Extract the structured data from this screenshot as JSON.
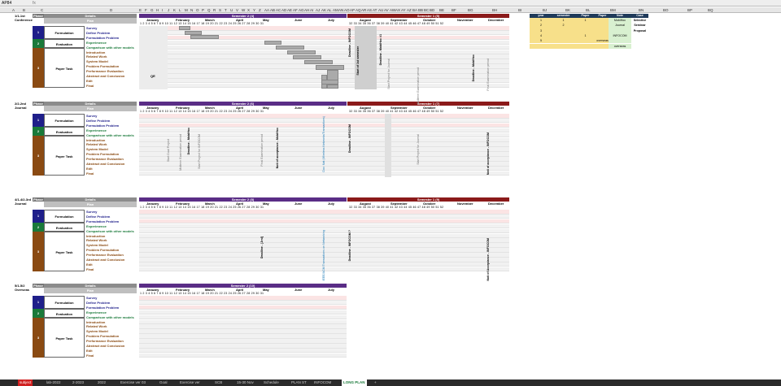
{
  "cell_ref": "AP84",
  "fx": "fx",
  "columns": [
    "A",
    "B",
    "C",
    "D",
    "E",
    "F",
    "G",
    "H",
    "I",
    "J",
    "K",
    "L",
    "M",
    "N",
    "O",
    "P",
    "Q",
    "R",
    "S",
    "T",
    "U",
    "V",
    "W",
    "X",
    "Y",
    "Z",
    "AA",
    "AB",
    "AC",
    "AD",
    "AE",
    "AF",
    "AG",
    "AH",
    "AI",
    "AJ",
    "AK",
    "AL",
    "AM",
    "AN",
    "AO",
    "AP",
    "AQ",
    "AR",
    "AS",
    "AT",
    "AU",
    "AV",
    "AW",
    "AX",
    "AY",
    "AZ",
    "BA",
    "BB",
    "BC",
    "BD",
    "BE",
    "BF",
    "BG",
    "BH",
    "BI",
    "BJ",
    "BK",
    "BL",
    "BM",
    "BN",
    "BO",
    "BP",
    "BQ"
  ],
  "blocks": [
    {
      "code": "1/1-1st",
      "type": "Conference",
      "phase": "Phase",
      "details": "Details",
      "plan": "Plan",
      "semA": "Semester 2 (4)",
      "semB": "Semester 1 (5)",
      "deadline": "Deadline - INFOCOM",
      "start_label": "Start of 1st semester",
      "qe": "QE",
      "extra1": "Deadline - MobiHoc #1",
      "extra2": "Start Project for Journal",
      "extra3": "Midterm Examination period",
      "extra4": "Deadline - MobiHoc",
      "extra5": "Final Examination period"
    },
    {
      "code": "2/2-2nd",
      "type": "Journal",
      "phase": "Phase",
      "details": "Details",
      "plan": "Plan",
      "semA": "Semester 2 (6)",
      "semB": "Semester 1 (7)",
      "deadline": "Deadline - INFOCOM",
      "proposal": "Proposal",
      "extra1": "Start Dual Project",
      "extra2": "Midterm Examination period",
      "extra3": "Deadline - MobiHoc",
      "extra4": "Start Project for INFOCOM",
      "extra5": "Final Examination period",
      "extra6": "Noti of acceptance - MobiHoc",
      "extra7": "Doc: Nat (Wireless Networks/Transactions)",
      "extra8": "Noti of acceptance - INFOCOM",
      "extra9": "Start Project for Journal"
    },
    {
      "code": "4/1-4/2-3rd",
      "type": "Journal",
      "phase": "Phase",
      "details": "Details",
      "plan": "Plan",
      "semA": "Semester 2 (8)",
      "semB": "Semester 1 (9)",
      "deadline": "Deadline - INFOCOM ?",
      "extra1": "Deadline - [Jrnl]",
      "extra2": "IEEE/ACM Transactions on Networking",
      "extra3": "Noti of Acceptance - INFOCOM"
    },
    {
      "code": "5/1-5/2",
      "type": "Overseas",
      "phase": "Phase",
      "details": "Details",
      "plan": "Plan",
      "semA": "Semester 2 (10)"
    }
  ],
  "phases": {
    "formulation": "Formulation",
    "evaluation": "Evaluation",
    "paper": "Paper Task",
    "n1": "1",
    "n2": "2",
    "n3": "3"
  },
  "tasks": [
    "Survey",
    "Define Problem",
    "Formulation Problem",
    "Experimence",
    "Comparison with other models",
    "Introduction",
    "Related Work",
    "System Model",
    "Problem Formulation",
    "Performance Evaluation",
    "Abstract and Conclusion",
    "Edit",
    "Final"
  ],
  "months": [
    "January",
    "February",
    "March",
    "April",
    "May",
    "June",
    "July",
    "August",
    "September",
    "October",
    "November",
    "December"
  ],
  "weeks1": "1 2 3 4 5 6 7 8 9 10 11 12 13 14 15 16 17 18 19 20 21 22 23 24 25 26 27 28 29 30 31",
  "weeks2": "32 33 34 35 36 37 38 39 40 41 42 43 44 45 46 47 48 49 50 51 52",
  "legend": {
    "headers": [
      "year",
      "semester",
      "Paper",
      "Paper",
      "Note",
      "Case"
    ],
    "row1": [
      "1",
      "1",
      "1",
      "",
      "MobiHoc",
      "Selective"
    ],
    "row2": [
      "2",
      "2",
      "",
      "",
      "Journal",
      "Seminar"
    ],
    "row3": [
      "3",
      "",
      "",
      "",
      "",
      "Proposal"
    ],
    "row4": [
      "4",
      "",
      "1",
      "",
      "INFOCOM",
      ""
    ],
    "row5": [
      "5",
      "",
      "",
      "overseas",
      "",
      ""
    ],
    "row6": [
      "",
      "",
      "",
      "",
      "overseas",
      ""
    ]
  },
  "tabs": [
    "subject",
    "lab-2022",
    "2-2023",
    "2022",
    "Exercise ver 03",
    "Goal",
    "Exercise ver",
    "SCB",
    "15-30 Nov",
    "Schedule",
    "PLAN ST",
    "INFOCOM",
    "LONG PLAN",
    "+"
  ],
  "colors": {
    "sem": "#5a2d86",
    "sem1": "#8b1a1a",
    "phase1": "#1f1f8a",
    "phase2": "#1a7a3a",
    "phase3": "#8a4a12",
    "plan": "#bfbfbf"
  }
}
